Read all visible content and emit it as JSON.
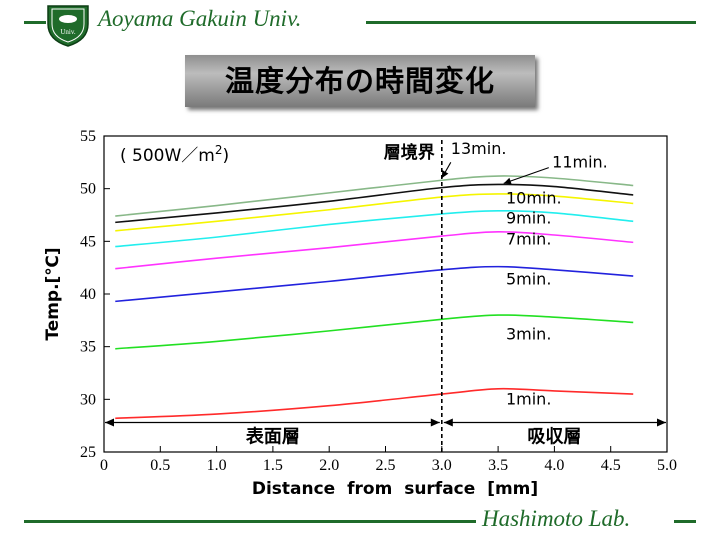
{
  "header": {
    "university": "Aoyama Gakuin Univ.",
    "emblem_text": "Univ.",
    "title": "温度分布の時間変化"
  },
  "footer": {
    "lab": "Hashimoto Lab."
  },
  "colors": {
    "brand_green": "#1f6b2a"
  },
  "chart_data": {
    "type": "line",
    "title": "",
    "xlabel": "Distance from surface [mm]",
    "ylabel": "Temp.[℃]",
    "xlim": [
      0,
      5.0
    ],
    "ylim": [
      25,
      55
    ],
    "x_ticks": [
      "0",
      "0.5",
      "1.0",
      "1.5",
      "2.0",
      "2.5",
      "3.0",
      "3.5",
      "4.0",
      "4.5",
      "5.0"
    ],
    "y_ticks": [
      "25",
      "30",
      "35",
      "40",
      "45",
      "50",
      "55"
    ],
    "condition_text": "( 500W／m",
    "condition_sup": "2",
    "condition_close": ")",
    "boundary": {
      "x": 3.0,
      "label": "層境界"
    },
    "regions": {
      "left": "表面層",
      "right": "吸収層"
    },
    "x": [
      0.1,
      1.0,
      2.0,
      3.0,
      3.5,
      4.0,
      4.7
    ],
    "series": [
      {
        "name": "1min.",
        "color": "#ff2a2a",
        "values": [
          28.2,
          28.6,
          29.4,
          30.5,
          31.0,
          30.8,
          30.5
        ]
      },
      {
        "name": "3min.",
        "color": "#22e022",
        "values": [
          34.8,
          35.5,
          36.5,
          37.6,
          38.0,
          37.8,
          37.3
        ]
      },
      {
        "name": "5min.",
        "color": "#2222dd",
        "values": [
          39.3,
          40.2,
          41.2,
          42.3,
          42.6,
          42.3,
          41.7
        ]
      },
      {
        "name": "7min.",
        "color": "#ff33ff",
        "values": [
          42.4,
          43.4,
          44.4,
          45.5,
          45.9,
          45.6,
          44.9
        ]
      },
      {
        "name": "9min.",
        "color": "#22eeee",
        "values": [
          44.5,
          45.4,
          46.6,
          47.6,
          47.9,
          47.7,
          46.9
        ]
      },
      {
        "name": "10min.",
        "color": "#f5f500",
        "values": [
          46.0,
          46.9,
          48.0,
          49.2,
          49.5,
          49.3,
          48.6
        ]
      },
      {
        "name": "11min.",
        "color": "#111111",
        "values": [
          46.8,
          47.7,
          48.8,
          50.1,
          50.4,
          50.2,
          49.4
        ]
      },
      {
        "name": "13min.",
        "color": "#88b888",
        "values": [
          47.4,
          48.4,
          49.6,
          50.8,
          51.2,
          51.0,
          50.3
        ]
      }
    ]
  }
}
